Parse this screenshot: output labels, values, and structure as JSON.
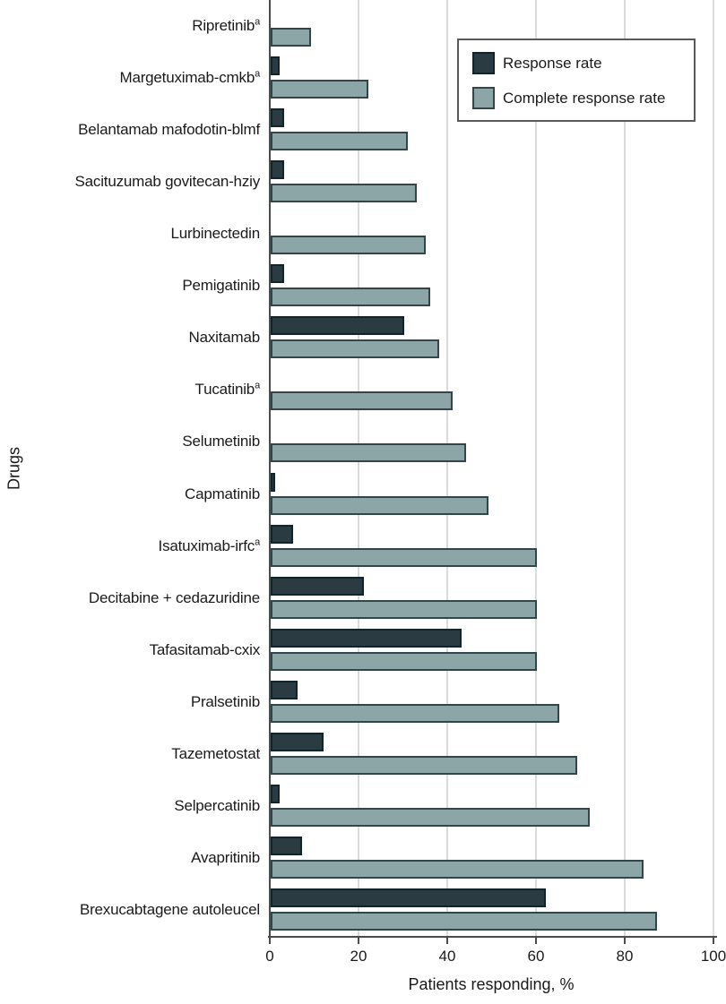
{
  "figure": {
    "background": "#ffffff",
    "text_color": "#1a1a1a",
    "axis_color": "#4a4c4d",
    "gridline_color": "#dadcdc"
  },
  "chart_data": {
    "type": "bar",
    "orientation": "horizontal",
    "title": "",
    "xlabel": "Patients responding, %",
    "ylabel": "Drugs",
    "xlim": [
      0,
      100
    ],
    "x_ticks": [
      0,
      20,
      40,
      60,
      80,
      100
    ],
    "grid": "vertical gridlines at each x tick",
    "legend_position": "top-right inside plot",
    "categories": [
      {
        "label": "Ripretinib",
        "superscript": "a"
      },
      {
        "label": "Margetuximab-cmkb",
        "superscript": "a"
      },
      {
        "label": "Belantamab mafodotin-blmf",
        "superscript": ""
      },
      {
        "label": "Sacituzumab govitecan-hziy",
        "superscript": ""
      },
      {
        "label": "Lurbinectedin",
        "superscript": ""
      },
      {
        "label": "Pemigatinib",
        "superscript": ""
      },
      {
        "label": "Naxitamab",
        "superscript": ""
      },
      {
        "label": "Tucatinib",
        "superscript": "a"
      },
      {
        "label": "Selumetinib",
        "superscript": ""
      },
      {
        "label": "Capmatinib",
        "superscript": ""
      },
      {
        "label": "Isatuximab-irfc",
        "superscript": "a"
      },
      {
        "label": "Decitabine + cedazuridine",
        "superscript": ""
      },
      {
        "label": "Tafasitamab-cxix",
        "superscript": ""
      },
      {
        "label": "Pralsetinib",
        "superscript": ""
      },
      {
        "label": "Tazemetostat",
        "superscript": ""
      },
      {
        "label": "Selpercatinib",
        "superscript": ""
      },
      {
        "label": "Avapritinib",
        "superscript": ""
      },
      {
        "label": "Brexucabtagene autoleucel",
        "superscript": ""
      }
    ],
    "series": [
      {
        "name": "Response rate",
        "fill_color": "#2a3b41",
        "border_color": "#12242b",
        "values": [
          0,
          2,
          3,
          3,
          0,
          3,
          30,
          0,
          0,
          1,
          5,
          21,
          43,
          6,
          12,
          2,
          7,
          62
        ]
      },
      {
        "name": "Complete response rate",
        "fill_color": "#8ca6a7",
        "border_color": "#31454b",
        "values": [
          9,
          22,
          31,
          33,
          35,
          36,
          38,
          41,
          44,
          49,
          60,
          60,
          60,
          65,
          69,
          72,
          84,
          87
        ]
      }
    ]
  }
}
